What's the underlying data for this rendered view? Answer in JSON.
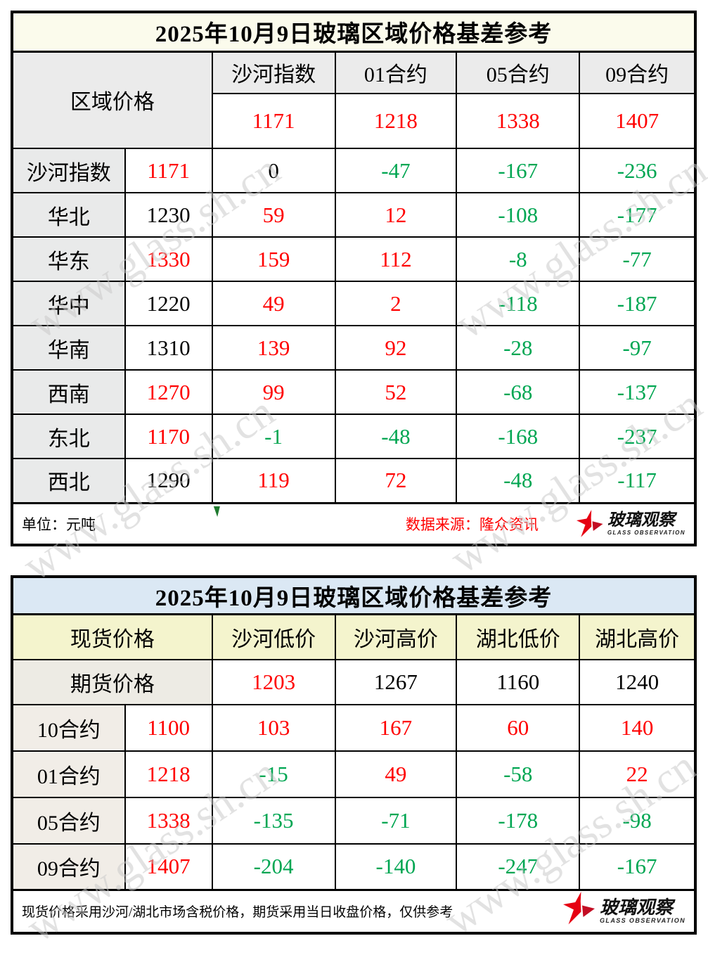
{
  "watermark_text": "www.glass.sh.cn",
  "logo": {
    "title": "玻璃观察",
    "subtitle": "GLASS OBSERVATION"
  },
  "colors": {
    "positive_red": "#FF0000",
    "negative_green": "#00A652",
    "neutral_black": "#000000",
    "table1_title_bg": "#FBFBEC",
    "table2_title_bg": "#DBE8F4",
    "table2_header_bg": "#F4F4CD",
    "logo_red": "#E60012"
  },
  "table1": {
    "title": "2025年10月9日玻璃区域价格基差参考",
    "corner_label": "区域价格",
    "columns": [
      "沙河指数",
      "01合约",
      "05合约",
      "09合约"
    ],
    "futures_row": [
      {
        "text": "1171",
        "color": "red"
      },
      {
        "text": "1218",
        "color": "red"
      },
      {
        "text": "1338",
        "color": "red"
      },
      {
        "text": "1407",
        "color": "red"
      }
    ],
    "rows": [
      {
        "label": "沙河指数",
        "price": {
          "text": "1171",
          "color": "red"
        },
        "basis": [
          {
            "text": "0",
            "color": "black"
          },
          {
            "text": "-47",
            "color": "green"
          },
          {
            "text": "-167",
            "color": "green"
          },
          {
            "text": "-236",
            "color": "green"
          }
        ]
      },
      {
        "label": "华北",
        "price": {
          "text": "1230",
          "color": "black"
        },
        "basis": [
          {
            "text": "59",
            "color": "red"
          },
          {
            "text": "12",
            "color": "red"
          },
          {
            "text": "-108",
            "color": "green"
          },
          {
            "text": "-177",
            "color": "green"
          }
        ]
      },
      {
        "label": "华东",
        "price": {
          "text": "1330",
          "color": "red"
        },
        "basis": [
          {
            "text": "159",
            "color": "red"
          },
          {
            "text": "112",
            "color": "red"
          },
          {
            "text": "-8",
            "color": "green"
          },
          {
            "text": "-77",
            "color": "green"
          }
        ]
      },
      {
        "label": "华中",
        "price": {
          "text": "1220",
          "color": "black"
        },
        "basis": [
          {
            "text": "49",
            "color": "red"
          },
          {
            "text": "2",
            "color": "red"
          },
          {
            "text": "-118",
            "color": "green"
          },
          {
            "text": "-187",
            "color": "green"
          }
        ]
      },
      {
        "label": "华南",
        "price": {
          "text": "1310",
          "color": "black"
        },
        "basis": [
          {
            "text": "139",
            "color": "red"
          },
          {
            "text": "92",
            "color": "red"
          },
          {
            "text": "-28",
            "color": "green"
          },
          {
            "text": "-97",
            "color": "green"
          }
        ]
      },
      {
        "label": "西南",
        "price": {
          "text": "1270",
          "color": "red"
        },
        "basis": [
          {
            "text": "99",
            "color": "red"
          },
          {
            "text": "52",
            "color": "red"
          },
          {
            "text": "-68",
            "color": "green"
          },
          {
            "text": "-137",
            "color": "green"
          }
        ]
      },
      {
        "label": "东北",
        "price": {
          "text": "1170",
          "color": "red"
        },
        "basis": [
          {
            "text": "-1",
            "color": "green"
          },
          {
            "text": "-48",
            "color": "green"
          },
          {
            "text": "-168",
            "color": "green"
          },
          {
            "text": "-237",
            "color": "green"
          }
        ]
      },
      {
        "label": "西北",
        "price": {
          "text": "1290",
          "color": "black"
        },
        "basis": [
          {
            "text": "119",
            "color": "red"
          },
          {
            "text": "72",
            "color": "red"
          },
          {
            "text": "-48",
            "color": "green"
          },
          {
            "text": "-117",
            "color": "green"
          }
        ]
      }
    ],
    "unit_note": "单位：元吨",
    "source_note": "数据来源：隆众资讯"
  },
  "table2": {
    "title": "2025年10月9日玻璃区域价格基差参考",
    "corner_label": "现货价格",
    "columns": [
      "沙河低价",
      "沙河高价",
      "湖北低价",
      "湖北高价"
    ],
    "futures_label": "期货价格",
    "spot_row": [
      {
        "text": "1203",
        "color": "red"
      },
      {
        "text": "1267",
        "color": "black"
      },
      {
        "text": "1160",
        "color": "black"
      },
      {
        "text": "1240",
        "color": "black"
      }
    ],
    "rows": [
      {
        "label": "10合约",
        "price": {
          "text": "1100",
          "color": "red"
        },
        "basis": [
          {
            "text": "103",
            "color": "red"
          },
          {
            "text": "167",
            "color": "red"
          },
          {
            "text": "60",
            "color": "red"
          },
          {
            "text": "140",
            "color": "red"
          }
        ]
      },
      {
        "label": "01合约",
        "price": {
          "text": "1218",
          "color": "red"
        },
        "basis": [
          {
            "text": "-15",
            "color": "green"
          },
          {
            "text": "49",
            "color": "red"
          },
          {
            "text": "-58",
            "color": "green"
          },
          {
            "text": "22",
            "color": "red"
          }
        ]
      },
      {
        "label": "05合约",
        "price": {
          "text": "1338",
          "color": "red"
        },
        "basis": [
          {
            "text": "-135",
            "color": "green"
          },
          {
            "text": "-71",
            "color": "green"
          },
          {
            "text": "-178",
            "color": "green"
          },
          {
            "text": "-98",
            "color": "green"
          }
        ]
      },
      {
        "label": "09合约",
        "price": {
          "text": "1407",
          "color": "red"
        },
        "basis": [
          {
            "text": "-204",
            "color": "green"
          },
          {
            "text": "-140",
            "color": "green"
          },
          {
            "text": "-247",
            "color": "green"
          },
          {
            "text": "-167",
            "color": "green"
          }
        ]
      }
    ],
    "footer_note": "现货价格采用沙河/湖北市场含税价格，期货采用当日收盘价格，仅供参考"
  }
}
